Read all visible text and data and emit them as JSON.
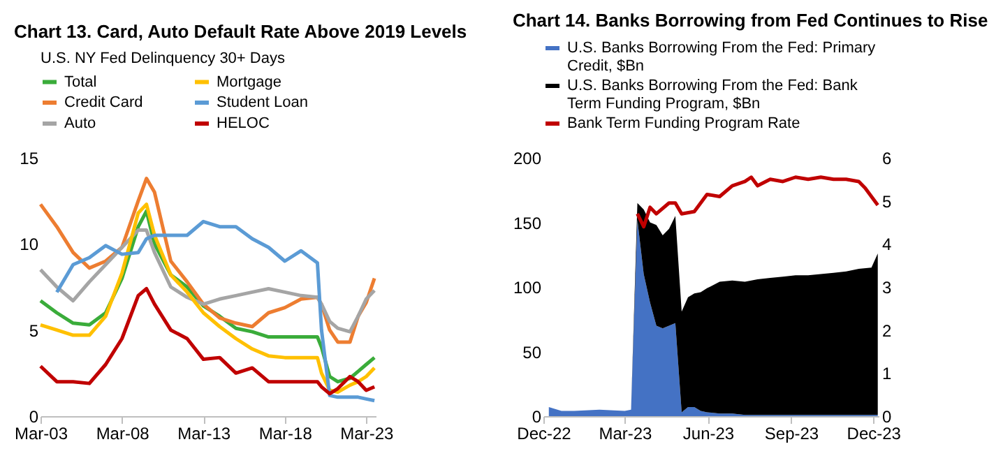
{
  "chart_data": [
    {
      "type": "line",
      "title": "Chart 13. Card, Auto Default Rate Above 2019 Levels",
      "legend_title": "U.S. NY Fed Delinquency 30+ Days",
      "legend": "top",
      "x": [
        "2003-03",
        "2004-03",
        "2005-03",
        "2006-03",
        "2007-03",
        "2008-03",
        "2009-03",
        "2009-09",
        "2010-03",
        "2011-03",
        "2012-03",
        "2013-03",
        "2014-03",
        "2015-03",
        "2016-03",
        "2017-03",
        "2018-03",
        "2019-03",
        "2020-03",
        "2020-06",
        "2020-12",
        "2021-06",
        "2022-03",
        "2022-09",
        "2023-03",
        "2023-09"
      ],
      "xlim": [
        "2003-03",
        "2023-10"
      ],
      "xticks": [
        {
          "value": "2003-03",
          "label": "Mar-03"
        },
        {
          "value": "2008-03",
          "label": "Mar-08"
        },
        {
          "value": "2013-03",
          "label": "Mar-13"
        },
        {
          "value": "2018-03",
          "label": "Mar-18"
        },
        {
          "value": "2023-03",
          "label": "Mar-23"
        }
      ],
      "ylim": [
        0,
        15
      ],
      "yticks": [
        0,
        5,
        10,
        15
      ],
      "series": [
        {
          "name": "Total",
          "color": "#3aac3a",
          "values": [
            6.7,
            6.0,
            5.4,
            5.3,
            6.0,
            8.0,
            11.0,
            11.9,
            10.0,
            8.2,
            7.5,
            6.4,
            5.8,
            5.1,
            4.9,
            4.6,
            4.6,
            4.6,
            4.6,
            4.0,
            2.3,
            2.0,
            2.2,
            2.6,
            3.0,
            3.4
          ]
        },
        {
          "name": "Credit Card",
          "color": "#ed7d31",
          "values": [
            12.3,
            11.0,
            9.5,
            8.6,
            9.0,
            9.8,
            12.5,
            13.8,
            13.0,
            9.0,
            7.8,
            6.5,
            5.7,
            5.4,
            5.2,
            6.0,
            6.3,
            6.8,
            6.9,
            6.5,
            5.0,
            4.3,
            4.3,
            5.8,
            6.6,
            8.0
          ]
        },
        {
          "name": "Auto",
          "color": "#a5a5a5",
          "values": [
            8.5,
            7.5,
            6.7,
            7.8,
            8.8,
            9.8,
            10.8,
            10.8,
            9.5,
            7.5,
            6.9,
            6.5,
            6.8,
            7.0,
            7.2,
            7.4,
            7.2,
            7.0,
            6.9,
            6.5,
            5.5,
            5.1,
            4.9,
            5.8,
            6.8,
            7.3
          ]
        },
        {
          "name": "Mortgage",
          "color": "#ffc000",
          "values": [
            5.3,
            5.0,
            4.7,
            4.7,
            5.8,
            8.3,
            11.8,
            12.3,
            10.5,
            8.2,
            7.2,
            6.0,
            5.2,
            4.5,
            3.9,
            3.5,
            3.4,
            3.4,
            3.4,
            2.5,
            1.5,
            1.4,
            1.8,
            2.0,
            2.3,
            2.8
          ]
        },
        {
          "name": "Student Loan",
          "color": "#5b9bd5",
          "values": [
            null,
            7.2,
            8.8,
            9.2,
            9.9,
            9.4,
            9.5,
            10.3,
            10.5,
            10.5,
            10.5,
            11.3,
            11.0,
            11.0,
            10.3,
            9.8,
            9.0,
            9.6,
            8.9,
            5.0,
            1.2,
            1.1,
            1.1,
            1.1,
            1.0,
            0.9
          ]
        },
        {
          "name": "HELOC",
          "color": "#c00000",
          "values": [
            2.9,
            2.0,
            2.0,
            1.9,
            3.0,
            4.5,
            7.0,
            7.4,
            6.5,
            5.0,
            4.5,
            3.3,
            3.4,
            2.5,
            2.8,
            2.0,
            2.0,
            2.0,
            2.0,
            1.7,
            1.3,
            1.6,
            2.3,
            2.0,
            1.5,
            1.7
          ]
        }
      ]
    },
    {
      "type": "area",
      "stacked": true,
      "title": "Chart 14. Banks Borrowing from Fed Continues to Rise",
      "legend": "top",
      "x": [
        "2022-12-07",
        "2022-12-21",
        "2023-01-04",
        "2023-02-01",
        "2023-03-01",
        "2023-03-08",
        "2023-03-15",
        "2023-03-22",
        "2023-03-29",
        "2023-04-05",
        "2023-04-12",
        "2023-04-19",
        "2023-04-26",
        "2023-05-03",
        "2023-05-10",
        "2023-05-17",
        "2023-05-24",
        "2023-05-31",
        "2023-06-14",
        "2023-06-28",
        "2023-07-12",
        "2023-07-26",
        "2023-08-09",
        "2023-08-23",
        "2023-09-06",
        "2023-09-20",
        "2023-10-04",
        "2023-10-18",
        "2023-11-01",
        "2023-11-15",
        "2023-11-29",
        "2023-12-06"
      ],
      "xlim": [
        "2022-12-01",
        "2023-12-07"
      ],
      "xticks": [
        {
          "value": "2022-12-01",
          "label": "Dec-22"
        },
        {
          "value": "2023-03-01",
          "label": "Mar-23"
        },
        {
          "value": "2023-06-01",
          "label": "Jun-23"
        },
        {
          "value": "2023-09-01",
          "label": "Sep-23"
        },
        {
          "value": "2023-12-01",
          "label": "Dec-23"
        }
      ],
      "ylim": [
        0,
        200
      ],
      "yticks": [
        0,
        50,
        100,
        150,
        200
      ],
      "y2lim": [
        0,
        6
      ],
      "y2ticks": [
        0,
        1,
        2,
        3,
        4,
        5,
        6
      ],
      "series": [
        {
          "name": "U.S. Banks Borrowing From the Fed: Primary Credit, $Bn",
          "color": "#4472c4",
          "values": [
            7,
            4,
            4,
            5,
            4,
            5,
            152,
            110,
            88,
            70,
            68,
            70,
            72,
            3,
            7,
            7,
            4,
            3,
            2,
            2,
            1,
            1,
            1,
            1,
            1,
            1,
            1,
            1,
            1,
            1,
            1,
            1
          ]
        },
        {
          "name": "U.S. Banks Borrowing From the Fed: Bank Term Funding Program, $Bn",
          "color": "#000000",
          "values": [
            0,
            0,
            0,
            0,
            0,
            0,
            13,
            50,
            62,
            78,
            72,
            75,
            83,
            78,
            85,
            88,
            92,
            96,
            102,
            103,
            103,
            105,
            106,
            107,
            108,
            108,
            109,
            110,
            111,
            113,
            114,
            125
          ]
        },
        {
          "name": "Bank Term Funding Program Rate",
          "type": "line",
          "axis": "y2",
          "color": "#c00000",
          "x": [
            "2023-03-15",
            "2023-03-22",
            "2023-03-29",
            "2023-04-05",
            "2023-04-19",
            "2023-04-26",
            "2023-05-03",
            "2023-05-17",
            "2023-05-31",
            "2023-06-14",
            "2023-06-28",
            "2023-07-12",
            "2023-07-19",
            "2023-07-26",
            "2023-08-09",
            "2023-08-23",
            "2023-09-06",
            "2023-09-20",
            "2023-10-04",
            "2023-10-18",
            "2023-11-01",
            "2023-11-15",
            "2023-11-22",
            "2023-11-29",
            "2023-12-06"
          ],
          "values": [
            4.7,
            4.4,
            4.85,
            4.7,
            4.95,
            4.95,
            4.7,
            4.75,
            5.15,
            5.1,
            5.35,
            5.45,
            5.55,
            5.35,
            5.5,
            5.45,
            5.55,
            5.5,
            5.55,
            5.5,
            5.5,
            5.45,
            5.3,
            5.1,
            4.9
          ]
        }
      ]
    }
  ]
}
